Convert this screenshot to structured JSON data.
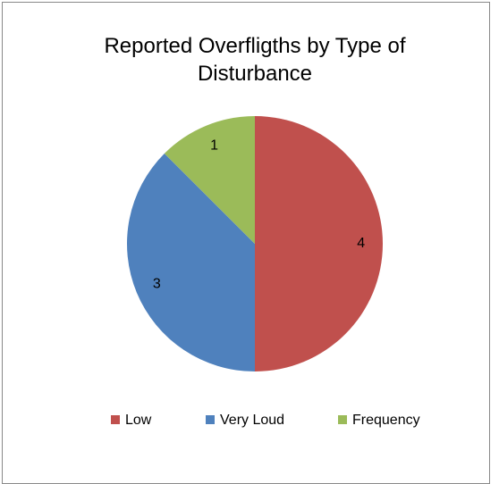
{
  "chart_data": {
    "type": "pie",
    "title": "Reported Overfligths by Type of Disturbance",
    "categories": [
      "Low",
      "Very Loud",
      "Frequency"
    ],
    "values": [
      4,
      3,
      1
    ],
    "colors": [
      "#c0504d",
      "#4f81bd",
      "#9bbb59"
    ],
    "legend": "bottom"
  }
}
